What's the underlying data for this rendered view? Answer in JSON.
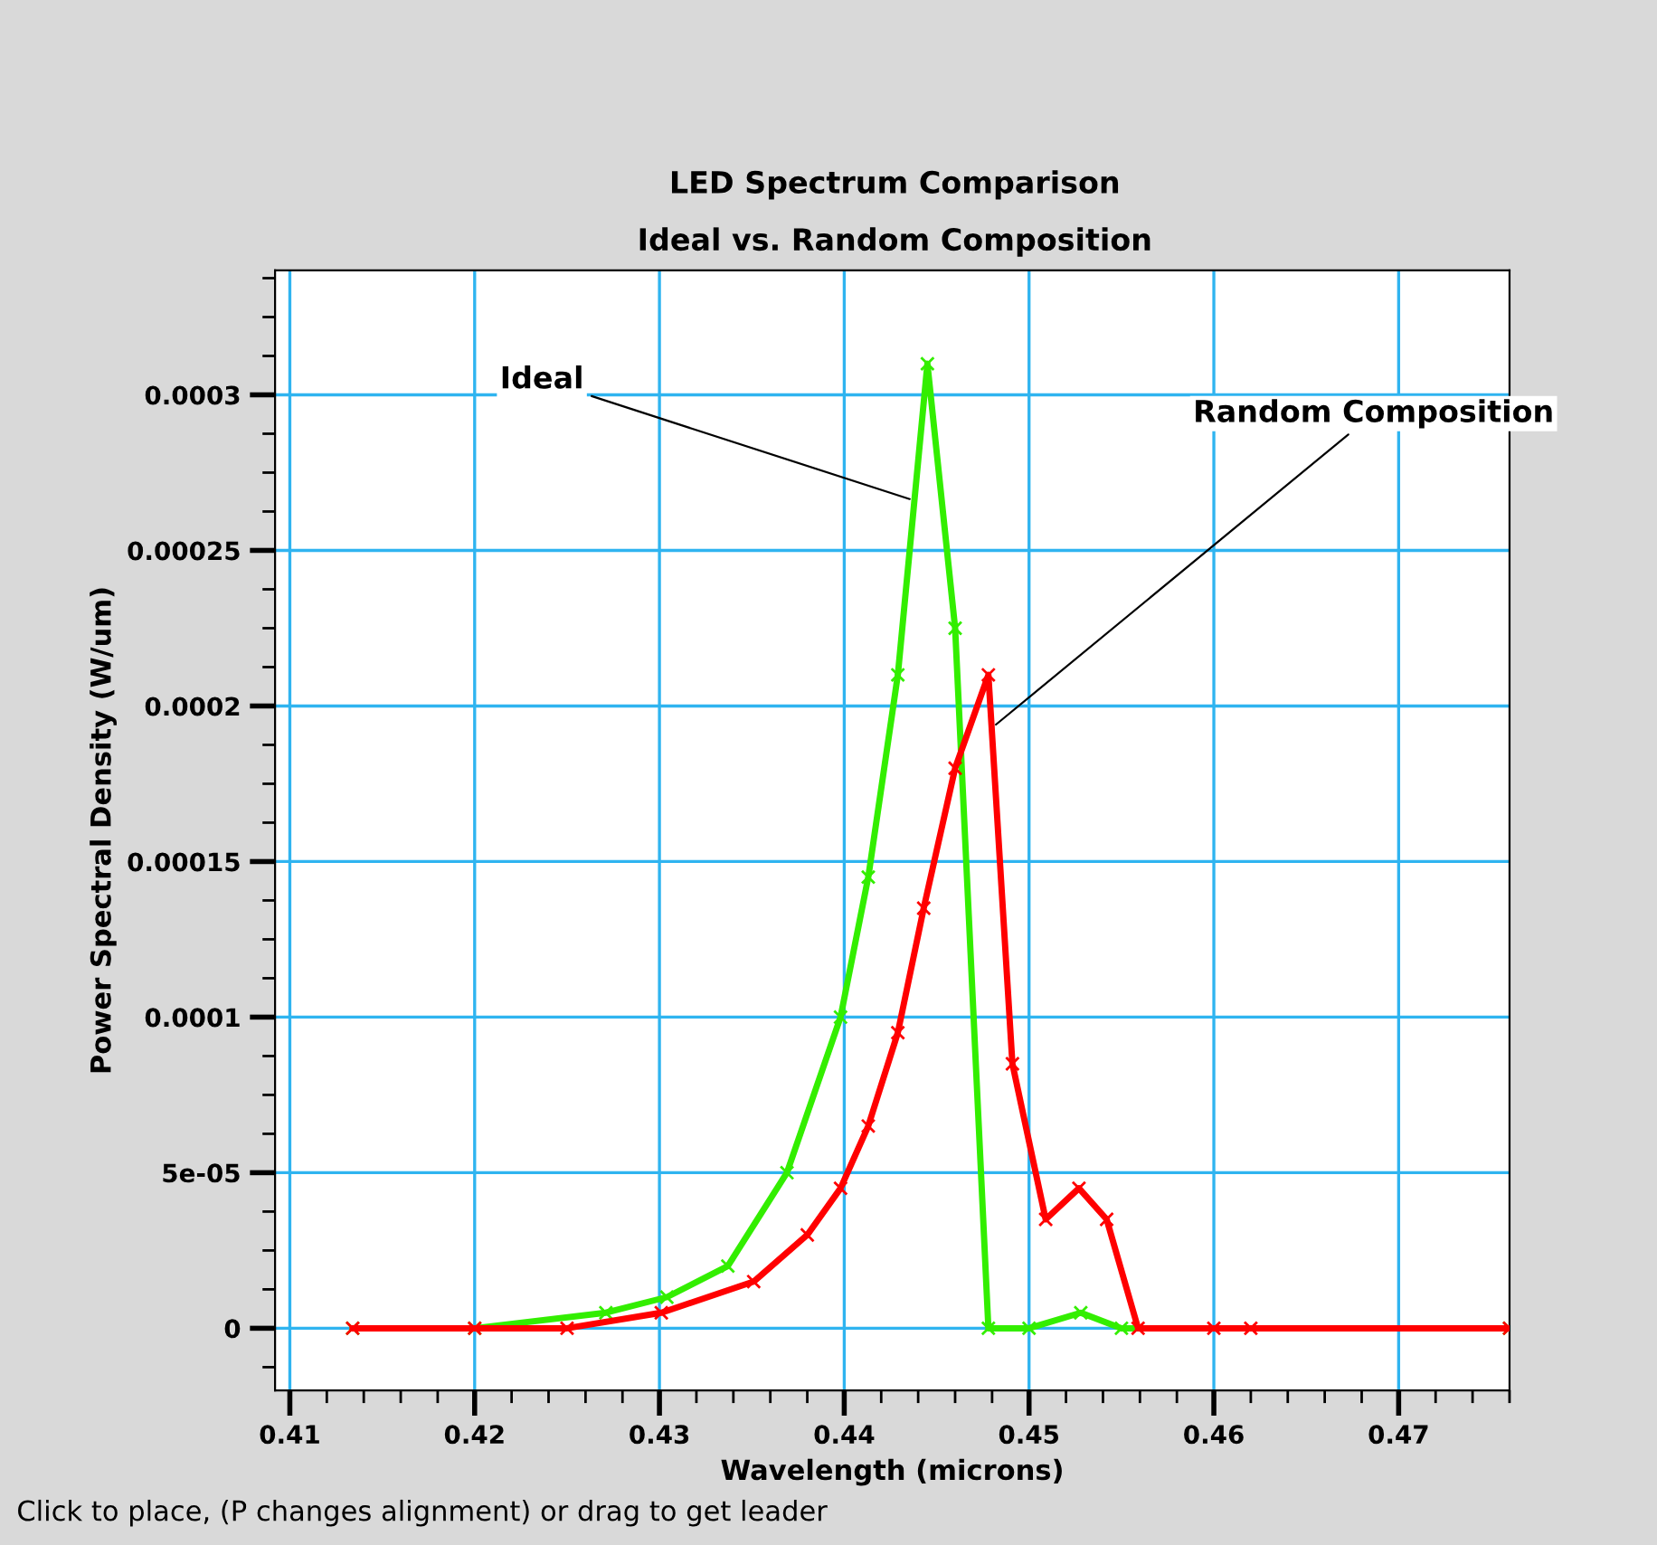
{
  "chart_data": {
    "type": "line",
    "title": "LED Spectrum Comparison",
    "subtitle": "Ideal vs. Random Composition",
    "xlabel": "Wavelength (microns)",
    "ylabel": "Power Spectral Density (W/um)",
    "xlim": [
      0.4092,
      0.476
    ],
    "ylim": [
      -2e-05,
      0.00034
    ],
    "xticks": [
      0.41,
      0.42,
      0.43,
      0.44,
      0.45,
      0.46,
      0.47
    ],
    "yticks": [
      {
        "value": 0,
        "label": "0"
      },
      {
        "value": 5e-05,
        "label": "5e-05"
      },
      {
        "value": 0.0001,
        "label": "0.0001"
      },
      {
        "value": 0.00015,
        "label": "0.00015"
      },
      {
        "value": 0.0002,
        "label": "0.0002"
      },
      {
        "value": 0.00025,
        "label": "0.00025"
      },
      {
        "value": 0.0003,
        "label": "0.0003"
      }
    ],
    "grid": true,
    "marker": "cross",
    "line_style": "solid",
    "series": [
      {
        "color": "#ff0000",
        "x": [
          0.4134,
          0.42,
          0.425,
          0.4301,
          0.4351,
          0.438,
          0.4398,
          0.4413,
          0.4429,
          0.4443,
          0.446,
          0.4478,
          0.4491,
          0.4509,
          0.4527,
          0.4542,
          0.4559,
          0.46,
          0.462,
          0.476
        ],
        "values": [
          0,
          0,
          0,
          5e-06,
          1.5e-05,
          3e-05,
          4.5e-05,
          6.5e-05,
          9.5e-05,
          0.000135,
          0.00018,
          0.00021,
          8.5e-05,
          3.5e-05,
          4.5e-05,
          3.5e-05,
          0,
          0,
          0,
          0
        ]
      },
      {
        "color": "#33ee00",
        "x": [
          0.4134,
          0.42,
          0.4271,
          0.4304,
          0.4337,
          0.4369,
          0.4398,
          0.4413,
          0.4429,
          0.4445,
          0.446,
          0.4478,
          0.45,
          0.4528,
          0.455,
          0.476
        ],
        "values": [
          0,
          0,
          5e-06,
          1e-05,
          2e-05,
          5e-05,
          0.0001,
          0.000145,
          0.00021,
          0.00031,
          0.000225,
          0,
          0,
          5e-06,
          0,
          0
        ]
      }
    ],
    "annotations": [
      {
        "text": "Ideal",
        "x": 0.4438,
        "y": 0.000266
      },
      {
        "text": "Random Composition",
        "x": 0.448,
        "y": 0.000193
      },
      "Click to place, (P changes alignment) or drag to get leader"
    ]
  }
}
